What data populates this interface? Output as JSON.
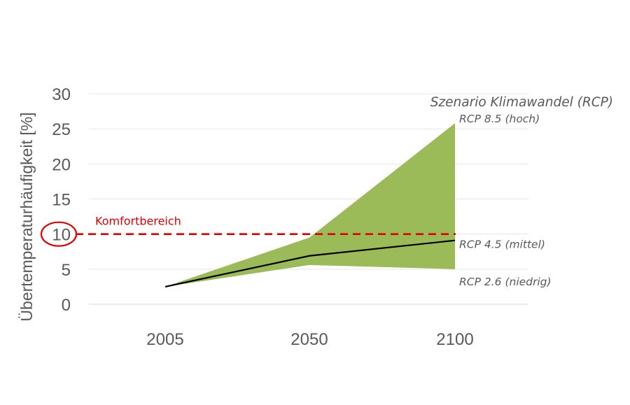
{
  "chart_data": {
    "type": "area",
    "ylabel": "Übertemperaturhäufigkeit [%]",
    "categories": [
      "2005",
      "2050",
      "2100"
    ],
    "yticks": [
      "0",
      "5",
      "10",
      "15",
      "20",
      "25",
      "30"
    ],
    "ylim": [
      0,
      30
    ],
    "grid": true,
    "band": {
      "upper": [
        2.5,
        9.5,
        25.8
      ],
      "lower": [
        2.5,
        5.6,
        5.0
      ],
      "color": "#9bbb59"
    },
    "series": [
      {
        "values": [
          2.5,
          6.9,
          9.1
        ],
        "color": "#000000"
      }
    ],
    "threshold": {
      "value": 10,
      "label": "Komfortbereich",
      "color": "#e00000"
    },
    "scenario_title": "Szenario Klimawandel (RCP)",
    "scenario_labels": {
      "high": "RCP 8.5 (hoch)",
      "mid": "RCP 4.5 (mittel)",
      "low": "RCP 2.6 (niedrig)"
    }
  }
}
